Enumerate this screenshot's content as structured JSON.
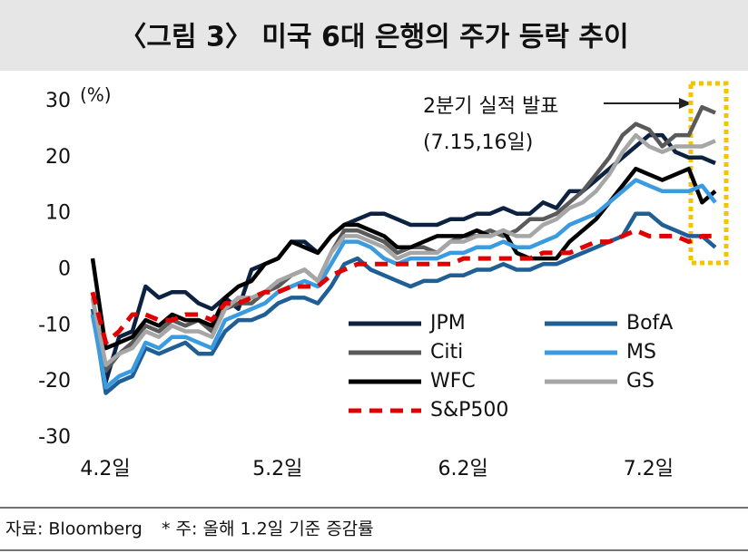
{
  "chart_data": {
    "type": "line",
    "title": "〈그림 3〉 미국 6대 은행의 주가 등락 추이",
    "y_unit": "(%)",
    "annotation": [
      "2분기 실적 발표",
      "(7.15,16일)"
    ],
    "source": "자료: Bloomberg",
    "note": "* 주: 올해 1.2일 기준 증감률",
    "categories": [
      "4.2일",
      null,
      null,
      null,
      null,
      null,
      null,
      null,
      null,
      null,
      null,
      null,
      null,
      "5.2일",
      null,
      null,
      null,
      null,
      null,
      null,
      null,
      null,
      null,
      null,
      null,
      null,
      null,
      "6.2일",
      null,
      null,
      null,
      null,
      null,
      null,
      null,
      null,
      null,
      null,
      null,
      null,
      null,
      "7.2일",
      null,
      null,
      null,
      null,
      null,
      null
    ],
    "ylim": [
      -30,
      30
    ],
    "yticks": [
      -30,
      -20,
      -10,
      0,
      10,
      20,
      30
    ],
    "series": [
      {
        "name": "JPM",
        "color": "#0d2240",
        "values": [
          -8,
          -20,
          -12,
          -11,
          -3,
          -5,
          -4,
          -4,
          -6,
          -7,
          -5,
          -7,
          0,
          1,
          2,
          5,
          5,
          3,
          6,
          8,
          9,
          10,
          10,
          9,
          8,
          8,
          8,
          9,
          9,
          10,
          10,
          11,
          10,
          10,
          12,
          11,
          14,
          14,
          16,
          18,
          20,
          22,
          24,
          24,
          21,
          20,
          20,
          19
        ]
      },
      {
        "name": "Citi",
        "color": "#5a5a5a",
        "values": [
          -5,
          -18,
          -15,
          -13,
          -10,
          -11,
          -9,
          -10,
          -9,
          -11,
          -7,
          -6,
          -6,
          -4,
          -3,
          -1,
          0,
          -2,
          3,
          7,
          7,
          6,
          5,
          3,
          4,
          4,
          3,
          5,
          6,
          6,
          7,
          6,
          7,
          9,
          9,
          10,
          12,
          14,
          17,
          20,
          24,
          26,
          25,
          22,
          24,
          24,
          29,
          28
        ]
      },
      {
        "name": "WFC",
        "color": "#000000",
        "values": [
          2,
          -14,
          -13,
          -12,
          -9,
          -10,
          -8,
          -9,
          -9,
          -10,
          -5,
          -3,
          -2,
          1,
          2,
          5,
          4,
          3,
          6,
          8,
          8,
          7,
          6,
          4,
          4,
          5,
          6,
          6,
          6,
          7,
          6,
          7,
          3,
          2,
          2,
          2,
          5,
          7,
          9,
          12,
          15,
          18,
          17,
          16,
          17,
          18,
          12,
          14
        ]
      },
      {
        "name": "BofA",
        "color": "#1f5f95",
        "values": [
          -7,
          -22,
          -20,
          -19,
          -14,
          -15,
          -14,
          -13,
          -15,
          -15,
          -11,
          -9,
          -9,
          -8,
          -6,
          -5,
          -5,
          -6,
          -3,
          1,
          2,
          0,
          -1,
          -2,
          -3,
          -2,
          -2,
          -1,
          -1,
          0,
          0,
          1,
          0,
          0,
          1,
          1,
          2,
          3,
          4,
          5,
          6,
          10,
          10,
          8,
          7,
          6,
          6,
          4
        ]
      },
      {
        "name": "MS",
        "color": "#3a9be0",
        "values": [
          -8,
          -21,
          -19,
          -18,
          -13,
          -14,
          -12,
          -12,
          -13,
          -14,
          -9,
          -8,
          -7,
          -6,
          -4,
          -3,
          -2,
          -3,
          1,
          5,
          5,
          4,
          2,
          1,
          2,
          2,
          2,
          3,
          3,
          4,
          4,
          5,
          4,
          4,
          5,
          6,
          8,
          9,
          10,
          12,
          14,
          16,
          15,
          14,
          14,
          14,
          15,
          12
        ]
      },
      {
        "name": "GS",
        "color": "#a6a6a6",
        "values": [
          -5,
          -17,
          -15,
          -14,
          -11,
          -12,
          -10,
          -11,
          -11,
          -12,
          -7,
          -5,
          -5,
          -4,
          -2,
          -1,
          0,
          -2,
          3,
          6,
          6,
          5,
          4,
          2,
          3,
          3,
          3,
          5,
          5,
          6,
          6,
          7,
          6,
          6,
          8,
          9,
          11,
          12,
          14,
          17,
          21,
          24,
          22,
          21,
          22,
          22,
          22,
          23
        ]
      },
      {
        "name": "S&P500",
        "color": "#e00000",
        "dashed": true,
        "values": [
          -4,
          -13,
          -11,
          -8,
          -8,
          -9,
          -9,
          -8,
          -8,
          -9,
          -6,
          -6,
          -5,
          -4,
          -4,
          -3,
          -3,
          -3,
          -1,
          0,
          1,
          1,
          1,
          1,
          1,
          1,
          1,
          1,
          2,
          2,
          2,
          2,
          2,
          2,
          3,
          3,
          3,
          4,
          5,
          5,
          6,
          7,
          6,
          6,
          6,
          5,
          6,
          6
        ]
      }
    ]
  }
}
